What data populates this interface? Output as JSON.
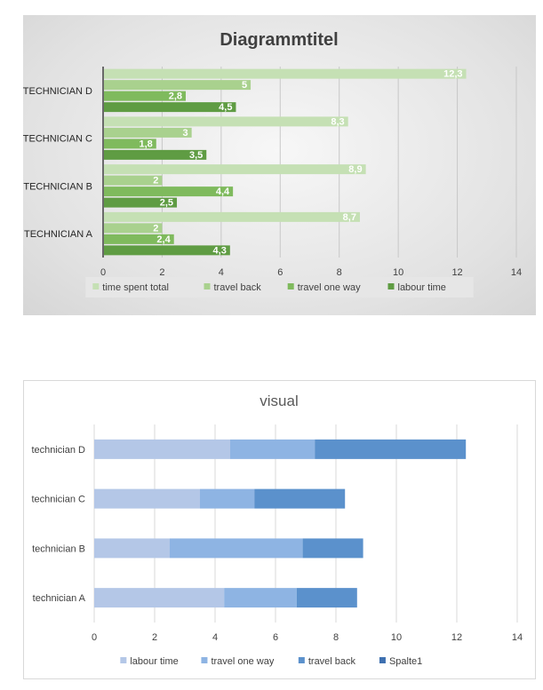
{
  "chart_data": [
    {
      "type": "bar",
      "orientation": "horizontal",
      "title": "Diagrammtitel",
      "categories": [
        "TECHNICIAN D",
        "TECHNICIAN C",
        "TECHNICIAN B",
        "TECHNICIAN A"
      ],
      "series": [
        {
          "name": "time spent total",
          "values": [
            12.3,
            8.3,
            8.9,
            8.7
          ],
          "labels": [
            "12,3",
            "8,3",
            "8,9",
            "8,7"
          ],
          "color": "#c5e0b4"
        },
        {
          "name": "travel back",
          "values": [
            5,
            3,
            2,
            2
          ],
          "labels": [
            "5",
            "3",
            "2",
            "2"
          ],
          "color": "#a9d18e"
        },
        {
          "name": "travel one way",
          "values": [
            2.8,
            1.8,
            4.4,
            2.4
          ],
          "labels": [
            "2,8",
            "1,8",
            "4,4",
            "2,4"
          ],
          "color": "#7fba5d"
        },
        {
          "name": "labour time",
          "values": [
            4.5,
            3.5,
            2.5,
            4.3
          ],
          "labels": [
            "4,5",
            "3,5",
            "2,5",
            "4,3"
          ],
          "color": "#5f9c43"
        }
      ],
      "xlim": [
        0,
        14
      ],
      "xticks": [
        0,
        2,
        4,
        6,
        8,
        10,
        12,
        14
      ],
      "grid": true,
      "legend": "bottom"
    },
    {
      "type": "bar",
      "orientation": "horizontal",
      "stacked": true,
      "title": "visual",
      "categories": [
        "technician D",
        "technician C",
        "technician B",
        "technician A"
      ],
      "series": [
        {
          "name": "labour time",
          "values": [
            4.5,
            3.5,
            2.5,
            4.3
          ],
          "color": "#b4c7e7"
        },
        {
          "name": "travel one way",
          "values": [
            2.8,
            1.8,
            4.4,
            2.4
          ],
          "color": "#8eb4e3"
        },
        {
          "name": "travel back",
          "values": [
            5,
            3,
            2,
            2
          ],
          "color": "#5b91cc"
        },
        {
          "name": "Spalte1",
          "values": [
            0,
            0,
            0,
            0
          ],
          "color": "#3e70b0"
        }
      ],
      "xlim": [
        0,
        14
      ],
      "xticks": [
        0,
        2,
        4,
        6,
        8,
        10,
        12,
        14
      ],
      "grid": true,
      "legend": "bottom"
    }
  ]
}
